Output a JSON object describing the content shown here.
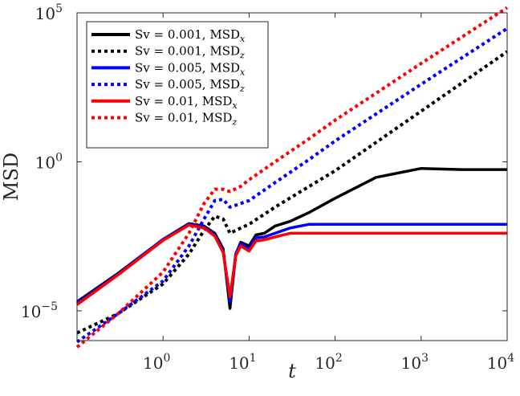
{
  "chart_data": {
    "type": "line",
    "title": "",
    "xlabel": "t",
    "ylabel": "MSD",
    "xscale": "log",
    "yscale": "log",
    "xlim": [
      0.1,
      10000
    ],
    "ylim": [
      1e-06,
      100000
    ],
    "x_ticks": [
      {
        "base": "10",
        "exp": "0",
        "value": 1
      },
      {
        "base": "10",
        "exp": "1",
        "value": 10
      },
      {
        "base": "10",
        "exp": "2",
        "value": 100
      },
      {
        "base": "10",
        "exp": "3",
        "value": 1000
      },
      {
        "base": "10",
        "exp": "4",
        "value": 10000
      }
    ],
    "y_ticks": [
      {
        "base": "10",
        "exp": "−5",
        "value": 1e-05
      },
      {
        "base": "10",
        "exp": "0",
        "value": 1
      },
      {
        "base": "10",
        "exp": "5",
        "value": 100000
      }
    ],
    "grid": false,
    "legend_position": "top-left",
    "series": [
      {
        "name": "Sv = 0.001, MSD",
        "sub": "x",
        "color": "#000000",
        "style": "solid",
        "x": [
          0.1,
          0.3,
          1,
          2,
          3,
          4,
          5,
          6,
          7,
          8,
          10,
          12,
          15,
          20,
          30,
          50,
          100,
          300,
          1000,
          3000,
          10000
        ],
        "y": [
          2e-05,
          0.00018,
          0.0025,
          0.0085,
          0.007,
          0.004,
          0.0012,
          1.2e-05,
          0.0008,
          0.002,
          0.0015,
          0.0035,
          0.004,
          0.007,
          0.01,
          0.02,
          0.06,
          0.3,
          0.6,
          0.55,
          0.55
        ]
      },
      {
        "name": "Sv = 0.001, MSD",
        "sub": "z",
        "color": "#000000",
        "style": "dotted",
        "x": [
          0.1,
          0.3,
          1,
          2,
          3,
          4,
          5,
          6,
          8,
          10,
          20,
          50,
          100,
          1000,
          10000
        ],
        "y": [
          1.8e-06,
          8e-06,
          8e-05,
          0.0008,
          0.005,
          0.015,
          0.012,
          0.004,
          0.006,
          0.008,
          0.03,
          0.15,
          0.5,
          50,
          5000
        ]
      },
      {
        "name": "Sv = 0.005, MSD",
        "sub": "x",
        "color": "#0000ff",
        "style": "solid",
        "x": [
          0.1,
          0.3,
          1,
          2,
          3,
          4,
          5,
          6,
          7,
          8,
          10,
          12,
          15,
          20,
          30,
          50,
          100,
          300,
          1000,
          10000
        ],
        "y": [
          1.8e-05,
          0.00017,
          0.0025,
          0.008,
          0.0065,
          0.0035,
          0.001,
          2e-05,
          0.0008,
          0.0018,
          0.0012,
          0.0028,
          0.003,
          0.004,
          0.006,
          0.008,
          0.008,
          0.008,
          0.008,
          0.008
        ]
      },
      {
        "name": "Sv = 0.005, MSD",
        "sub": "z",
        "color": "#0000ff",
        "style": "dotted",
        "x": [
          0.1,
          0.3,
          1,
          2,
          3,
          4,
          5,
          6,
          8,
          10,
          20,
          50,
          100,
          1000,
          10000
        ],
        "y": [
          9e-07,
          8e-06,
          0.0001,
          0.0015,
          0.012,
          0.05,
          0.055,
          0.03,
          0.04,
          0.05,
          0.2,
          1.2,
          5,
          400,
          30000
        ]
      },
      {
        "name": "Sv = 0.01, MSD",
        "sub": "x",
        "color": "#ff0000",
        "style": "solid",
        "x": [
          0.1,
          0.3,
          1,
          2,
          3,
          4,
          5,
          6,
          7,
          8,
          10,
          12,
          15,
          20,
          30,
          50,
          100,
          300,
          1000,
          10000
        ],
        "y": [
          1.6e-05,
          0.00016,
          0.0023,
          0.0075,
          0.006,
          0.0032,
          0.0009,
          3e-05,
          0.0007,
          0.0015,
          0.001,
          0.0022,
          0.0024,
          0.003,
          0.004,
          0.004,
          0.004,
          0.004,
          0.004,
          0.004
        ]
      },
      {
        "name": "Sv = 0.01, MSD",
        "sub": "z",
        "color": "#ff0000",
        "style": "dotted",
        "x": [
          0.1,
          0.3,
          1,
          2,
          3,
          4,
          5,
          6,
          8,
          10,
          20,
          50,
          100,
          1000,
          10000
        ],
        "y": [
          6e-07,
          8e-06,
          0.0002,
          0.004,
          0.04,
          0.12,
          0.12,
          0.1,
          0.15,
          0.25,
          1,
          6,
          25,
          2000,
          150000
        ]
      }
    ]
  }
}
